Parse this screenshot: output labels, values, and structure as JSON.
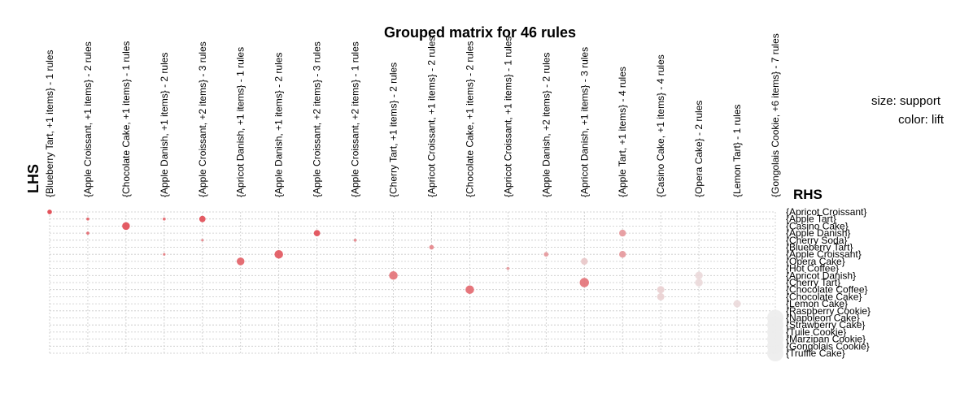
{
  "chart_data": {
    "type": "scatter",
    "title": "Grouped matrix for 46 rules",
    "xlabel": "LHS",
    "ylabel": "RHS",
    "legend": {
      "size_label": "size: support",
      "color_label": "color: lift",
      "placement": "top-right"
    },
    "grid": true,
    "colors": {
      "high_lift": "#e0414a",
      "low_lift": "#ececec",
      "grid": "#c8c8c8"
    },
    "lhs": [
      "{Blueberry Tart, +1 items} - 1 rules",
      "{Apple Croissant, +1 items} - 2 rules",
      "{Chocolate Cake, +1 items} - 1 rules",
      "{Apple Danish, +1 items} - 2 rules",
      "{Apple Croissant, +2 items} - 3 rules",
      "{Apricot Danish, +1 items} - 1 rules",
      "{Apple Danish, +1 items} - 2 rules",
      "{Apple Croissant, +2 items} - 3 rules",
      "{Apple Croissant, +2 items} - 1 rules",
      "{Cherry Tart, +1 items} - 2 rules",
      "{Apricot Croissant, +1 items} - 2 rules",
      "{Chocolate Cake, +1 items} - 2 rules",
      "{Apricot Croissant, +1 items} - 1 rules",
      "{Apple Danish, +2 items} - 2 rules",
      "{Apricot Danish, +1 items} - 3 rules",
      "{Apple Tart, +1 items} - 4 rules",
      "{Casino Cake, +1 items} - 4 rules",
      "{Opera Cake} - 2 rules",
      "{Lemon Tart} - 1 rules",
      "{Gongolais Cookie, +6 items} - 7 rules"
    ],
    "rhs": [
      "{Apricot Croissant}",
      "{Apple Tart}",
      "{Casino Cake}",
      "{Apple Danish}",
      "{Cherry Soda}",
      "{Blueberry Tart}",
      "{Apple Croissant}",
      "{Opera Cake}",
      "{Hot Coffee}",
      "{Apricot Danish}",
      "{Cherry Tart}",
      "{Chocolate Coffee}",
      "{Chocolate Cake}",
      "{Lemon Cake}",
      "{Raspberry Cookie}",
      "{Napoleon Cake}",
      "{Strawberry Cake}",
      "{Tuile Cookie}",
      "{Marzipan Cookie}",
      "{Gongolais Cookie}",
      "{Truffle Cake}"
    ],
    "points": [
      {
        "lhs": 0,
        "rhs": 0,
        "support": 0.02,
        "lift": 0.95
      },
      {
        "lhs": 1,
        "rhs": 1,
        "support": 0.01,
        "lift": 0.8
      },
      {
        "lhs": 1,
        "rhs": 3,
        "support": 0.01,
        "lift": 0.75
      },
      {
        "lhs": 2,
        "rhs": 2,
        "support": 0.05,
        "lift": 0.9
      },
      {
        "lhs": 3,
        "rhs": 1,
        "support": 0.01,
        "lift": 0.75
      },
      {
        "lhs": 3,
        "rhs": 6,
        "support": 0.008,
        "lift": 0.65
      },
      {
        "lhs": 4,
        "rhs": 1,
        "support": 0.035,
        "lift": 0.9
      },
      {
        "lhs": 4,
        "rhs": 4,
        "support": 0.008,
        "lift": 0.6
      },
      {
        "lhs": 5,
        "rhs": 7,
        "support": 0.05,
        "lift": 0.8
      },
      {
        "lhs": 6,
        "rhs": 6,
        "support": 0.06,
        "lift": 0.85
      },
      {
        "lhs": 7,
        "rhs": 3,
        "support": 0.035,
        "lift": 0.9
      },
      {
        "lhs": 8,
        "rhs": 4,
        "support": 0.01,
        "lift": 0.6
      },
      {
        "lhs": 9,
        "rhs": 9,
        "support": 0.06,
        "lift": 0.7
      },
      {
        "lhs": 10,
        "rhs": 5,
        "support": 0.02,
        "lift": 0.6
      },
      {
        "lhs": 11,
        "rhs": 11,
        "support": 0.06,
        "lift": 0.75
      },
      {
        "lhs": 12,
        "rhs": 8,
        "support": 0.01,
        "lift": 0.5
      },
      {
        "lhs": 13,
        "rhs": 6,
        "support": 0.02,
        "lift": 0.5
      },
      {
        "lhs": 14,
        "rhs": 7,
        "support": 0.04,
        "lift": 0.25
      },
      {
        "lhs": 14,
        "rhs": 10,
        "support": 0.07,
        "lift": 0.7
      },
      {
        "lhs": 15,
        "rhs": 3,
        "support": 0.04,
        "lift": 0.5
      },
      {
        "lhs": 15,
        "rhs": 6,
        "support": 0.04,
        "lift": 0.5
      },
      {
        "lhs": 16,
        "rhs": 11,
        "support": 0.045,
        "lift": 0.2
      },
      {
        "lhs": 16,
        "rhs": 12,
        "support": 0.045,
        "lift": 0.2
      },
      {
        "lhs": 17,
        "rhs": 9,
        "support": 0.05,
        "lift": 0.15
      },
      {
        "lhs": 17,
        "rhs": 10,
        "support": 0.05,
        "lift": 0.15
      },
      {
        "lhs": 18,
        "rhs": 13,
        "support": 0.045,
        "lift": 0.15
      },
      {
        "lhs": 19,
        "rhs": 15,
        "support": 0.2,
        "lift": 0.05
      },
      {
        "lhs": 19,
        "rhs": 16,
        "support": 0.2,
        "lift": 0.05
      },
      {
        "lhs": 19,
        "rhs": 17,
        "support": 0.2,
        "lift": 0.05
      },
      {
        "lhs": 19,
        "rhs": 18,
        "support": 0.2,
        "lift": 0.05
      },
      {
        "lhs": 19,
        "rhs": 19,
        "support": 0.2,
        "lift": 0.05
      },
      {
        "lhs": 19,
        "rhs": 20,
        "support": 0.2,
        "lift": 0.05
      }
    ]
  }
}
